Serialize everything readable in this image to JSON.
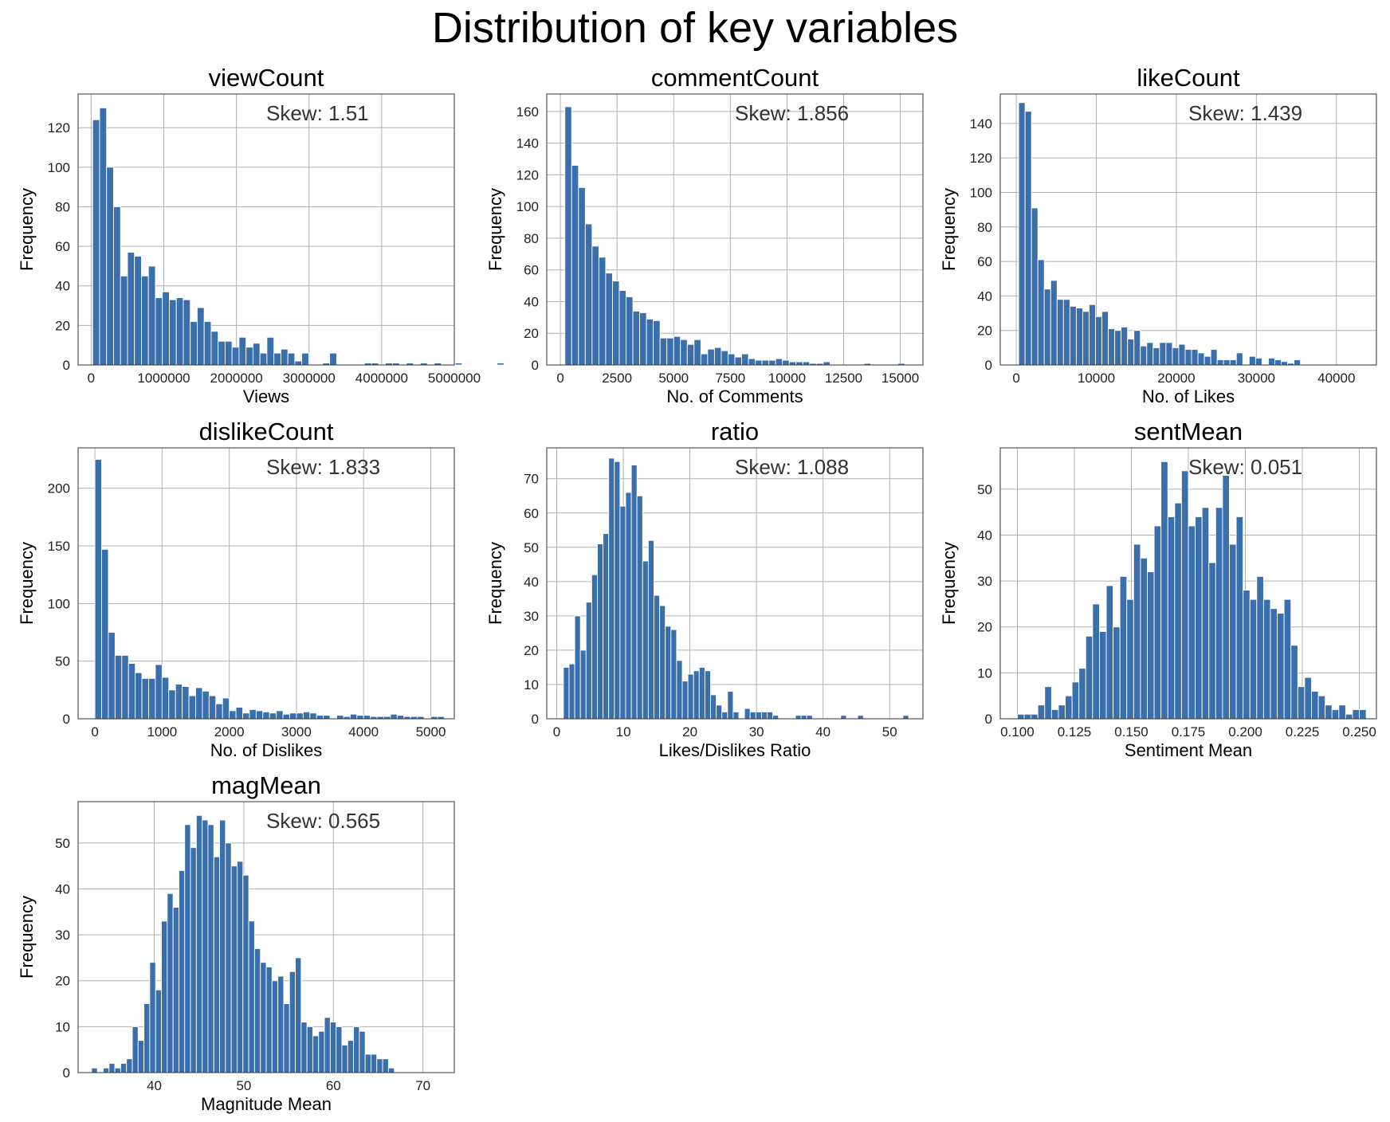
{
  "figure": {
    "title": "Distribution of key variables",
    "bar_color": "#3b6fab",
    "grid_color": "#b0b0b0"
  },
  "chart_data": [
    {
      "type": "bar",
      "title": "viewCount",
      "xlabel": "Views",
      "ylabel": "Frequency",
      "annotation": "Skew: 1.51",
      "xlim": [
        -180000,
        5000000
      ],
      "ylim": [
        0,
        137
      ],
      "xticks": [
        0,
        1000000,
        2000000,
        3000000,
        4000000,
        5000000
      ],
      "yticks": [
        0,
        20,
        40,
        60,
        80,
        100,
        120
      ],
      "bin_start": 20000,
      "bin_width": 96000,
      "values": [
        124,
        130,
        100,
        80,
        45,
        57,
        55,
        45,
        50,
        34,
        37,
        33,
        34,
        33,
        22,
        29,
        22,
        17,
        12,
        12,
        9,
        14,
        9,
        11,
        6,
        14,
        6,
        8,
        6,
        2,
        6,
        0,
        0,
        1,
        6,
        0,
        0,
        0,
        0,
        1,
        1,
        0,
        1,
        1,
        0,
        1,
        0,
        1,
        0,
        1,
        0,
        0,
        1,
        0,
        0,
        0,
        0,
        0,
        1,
        0,
        0,
        0,
        0,
        0,
        0
      ]
    },
    {
      "type": "bar",
      "title": "commentCount",
      "xlabel": "No. of Comments",
      "ylabel": "Frequency",
      "annotation": "Skew: 1.856",
      "xlim": [
        -600,
        16000
      ],
      "ylim": [
        0,
        171
      ],
      "xticks": [
        0,
        2500,
        5000,
        7500,
        10000,
        12500,
        15000
      ],
      "yticks": [
        0,
        20,
        40,
        60,
        80,
        100,
        120,
        140,
        160
      ],
      "bin_start": 200,
      "bin_width": 300,
      "values": [
        163,
        126,
        112,
        89,
        75,
        68,
        58,
        53,
        47,
        43,
        34,
        33,
        29,
        28,
        17,
        17,
        18,
        16,
        13,
        16,
        7,
        10,
        11,
        9,
        7,
        5,
        7,
        4,
        3,
        3,
        3,
        4,
        3,
        2,
        2,
        2,
        1,
        1,
        2,
        0,
        0,
        0,
        0,
        0,
        1,
        0,
        0,
        0,
        0,
        1,
        0
      ]
    },
    {
      "type": "bar",
      "title": "likeCount",
      "xlabel": "No. of Likes",
      "ylabel": "Frequency",
      "annotation": "Skew: 1.439",
      "xlim": [
        -2000,
        45000
      ],
      "ylim": [
        0,
        157
      ],
      "xticks": [
        0,
        10000,
        20000,
        30000,
        40000
      ],
      "yticks": [
        0,
        20,
        40,
        60,
        80,
        100,
        120,
        140
      ],
      "bin_start": 300,
      "bin_width": 800,
      "values": [
        152,
        147,
        91,
        61,
        44,
        49,
        38,
        38,
        34,
        33,
        31,
        35,
        28,
        31,
        21,
        20,
        22,
        15,
        20,
        11,
        13,
        10,
        13,
        13,
        10,
        12,
        9,
        9,
        7,
        5,
        9,
        3,
        3,
        3,
        7,
        0,
        5,
        4,
        0,
        4,
        3,
        2,
        1,
        3,
        0
      ]
    },
    {
      "type": "bar",
      "title": "dislikeCount",
      "xlabel": "No. of Dislikes",
      "ylabel": "Frequency",
      "annotation": "Skew: 1.833",
      "xlim": [
        -250,
        5350
      ],
      "ylim": [
        0,
        235
      ],
      "xticks": [
        0,
        1000,
        2000,
        3000,
        4000,
        5000
      ],
      "yticks": [
        0,
        50,
        100,
        150,
        200
      ],
      "bin_start": 0,
      "bin_width": 100,
      "values": [
        225,
        147,
        75,
        55,
        55,
        48,
        40,
        35,
        35,
        47,
        36,
        25,
        30,
        28,
        20,
        27,
        24,
        20,
        13,
        18,
        7,
        10,
        5,
        8,
        7,
        6,
        5,
        7,
        4,
        5,
        5,
        6,
        5,
        3,
        3,
        0,
        3,
        2,
        4,
        3,
        3,
        2,
        2,
        2,
        4,
        3,
        2,
        2,
        2,
        0,
        2,
        2,
        0
      ]
    },
    {
      "type": "bar",
      "title": "ratio",
      "xlabel": "Likes/Dislikes Ratio",
      "ylabel": "Frequency",
      "annotation": "Skew: 1.088",
      "xlim": [
        -1.5,
        55
      ],
      "ylim": [
        0,
        79
      ],
      "xticks": [
        0,
        10,
        20,
        30,
        40,
        50
      ],
      "yticks": [
        0,
        10,
        20,
        30,
        40,
        50,
        60,
        70
      ],
      "bin_start": 1,
      "bin_width": 0.85,
      "values": [
        15,
        16,
        30,
        20,
        34,
        42,
        51,
        54,
        76,
        75,
        62,
        66,
        74,
        65,
        46,
        52,
        36,
        33,
        27,
        26,
        17,
        11,
        13,
        14,
        15,
        14,
        7,
        4,
        2,
        8,
        2,
        0,
        3,
        2,
        2,
        2,
        2,
        1,
        0,
        0,
        0,
        1,
        1,
        1,
        0,
        0,
        0,
        0,
        0,
        1,
        0,
        0,
        1,
        0,
        0,
        0,
        0,
        0,
        0,
        0,
        1
      ]
    },
    {
      "type": "bar",
      "title": "sentMean",
      "xlabel": "Sentiment Mean",
      "ylabel": "Frequency",
      "annotation": "Skew: 0.051",
      "xlim": [
        0.0925,
        0.2575
      ],
      "ylim": [
        0,
        59
      ],
      "xticks": [
        0.1,
        0.125,
        0.15,
        0.175,
        0.2,
        0.225,
        0.25
      ],
      "yticks": [
        0,
        10,
        20,
        30,
        40,
        50
      ],
      "bin_start": 0.1,
      "bin_width": 0.003,
      "values": [
        1,
        1,
        1,
        3,
        7,
        2,
        3,
        5,
        8,
        11,
        18,
        25,
        19,
        29,
        20,
        31,
        26,
        38,
        35,
        32,
        42,
        56,
        44,
        47,
        54,
        42,
        44,
        46,
        34,
        46,
        53,
        38,
        44,
        28,
        26,
        31,
        26,
        24,
        23,
        26,
        16,
        7,
        9,
        6,
        5,
        3,
        2,
        3,
        1,
        2,
        2
      ]
    },
    {
      "type": "bar",
      "title": "magMean",
      "xlabel": "Magnitude Mean",
      "ylabel": "Frequency",
      "annotation": "Skew: 0.565",
      "xlim": [
        31.5,
        73.5
      ],
      "ylim": [
        0,
        59
      ],
      "xticks": [
        40,
        50,
        60,
        70
      ],
      "yticks": [
        0,
        10,
        20,
        30,
        40,
        50
      ],
      "bin_start": 33,
      "bin_width": 0.65,
      "values": [
        1,
        0,
        1,
        2,
        1,
        2,
        3,
        10,
        7,
        15,
        24,
        18,
        33,
        39,
        36,
        44,
        54,
        49,
        56,
        55,
        54,
        47,
        55,
        50,
        45,
        46,
        43,
        33,
        27,
        24,
        23,
        20,
        21,
        15,
        22,
        25,
        11,
        10,
        8,
        9,
        12,
        11,
        10,
        6,
        7,
        10,
        9,
        4,
        4,
        3,
        3,
        1
      ]
    }
  ]
}
